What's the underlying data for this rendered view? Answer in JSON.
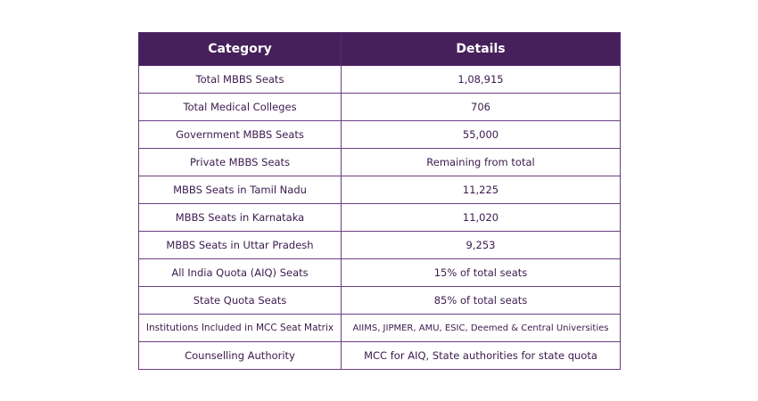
{
  "table": {
    "headers": [
      "Category",
      "Details"
    ],
    "rows": [
      [
        "Total MBBS Seats",
        "1,08,915"
      ],
      [
        "Total Medical Colleges",
        "706"
      ],
      [
        "Government MBBS Seats",
        "55,000"
      ],
      [
        "Private MBBS Seats",
        "Remaining from total"
      ],
      [
        "MBBS Seats in Tamil Nadu",
        "11,225"
      ],
      [
        "MBBS Seats in Karnataka",
        "11,020"
      ],
      [
        "MBBS Seats in Uttar Pradesh",
        "9,253"
      ],
      [
        "All India Quota (AIQ) Seats",
        "15% of total seats"
      ],
      [
        "State Quota Seats",
        "85% of total seats"
      ],
      [
        "Institutions Included in MCC Seat Matrix",
        "AIIMS, JIPMER, AMU, ESIC, Deemed & Central Universities"
      ],
      [
        "Counselling Authority",
        "MCC for AIQ, State authorities for state quota"
      ]
    ]
  },
  "colors": {
    "header_bg": "#46205a",
    "header_text": "#ffffff",
    "cell_text": "#3b1a4e",
    "border": "#6b3d82"
  }
}
